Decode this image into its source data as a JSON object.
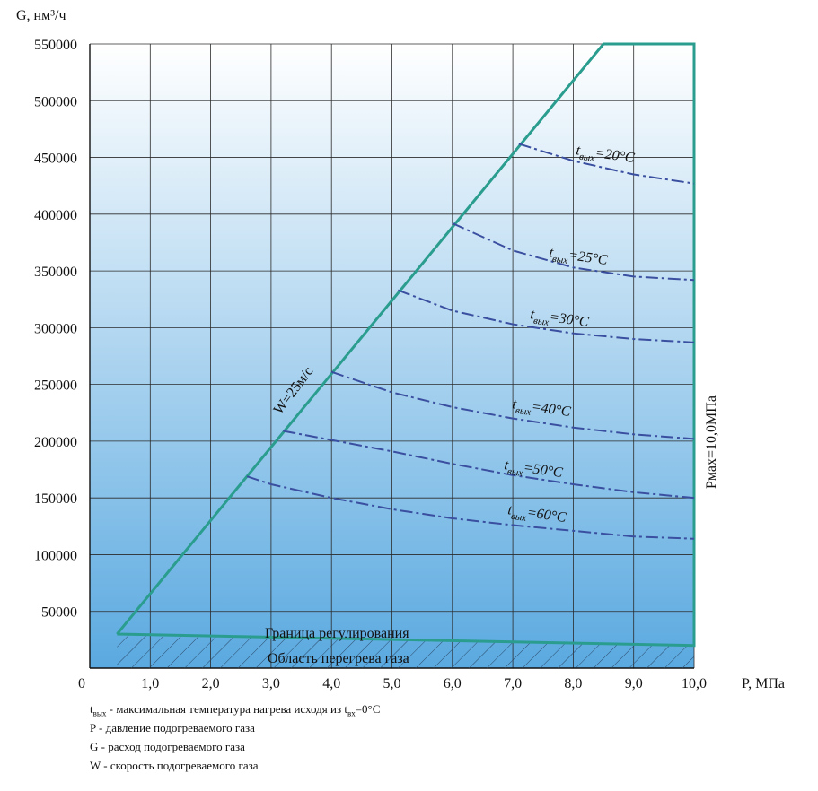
{
  "chart_data": {
    "type": "line",
    "ylabel": "G, нм³/ч",
    "xlabel": "P, МПа",
    "xlim": [
      0,
      10
    ],
    "ylim": [
      0,
      550000
    ],
    "x_ticks": [
      {
        "v": 1,
        "label": "1,0"
      },
      {
        "v": 2,
        "label": "2,0"
      },
      {
        "v": 3,
        "label": "3,0"
      },
      {
        "v": 4,
        "label": "4,0"
      },
      {
        "v": 5,
        "label": "5,0"
      },
      {
        "v": 6,
        "label": "6,0"
      },
      {
        "v": 7,
        "label": "7,0"
      },
      {
        "v": 8,
        "label": "8,0"
      },
      {
        "v": 9,
        "label": "9,0"
      },
      {
        "v": 10,
        "label": "10,0"
      }
    ],
    "y_ticks": [
      {
        "v": 50000,
        "label": "50000"
      },
      {
        "v": 100000,
        "label": "100000"
      },
      {
        "v": 150000,
        "label": "150000"
      },
      {
        "v": 200000,
        "label": "200000"
      },
      {
        "v": 250000,
        "label": "250000"
      },
      {
        "v": 300000,
        "label": "300000"
      },
      {
        "v": 350000,
        "label": "350000"
      },
      {
        "v": 400000,
        "label": "400000"
      },
      {
        "v": 450000,
        "label": "450000"
      },
      {
        "v": 500000,
        "label": "500000"
      },
      {
        "v": 550000,
        "label": "550000"
      }
    ],
    "origin_label": "0",
    "grid": true,
    "boundary": {
      "points": [
        [
          0.45,
          30000
        ],
        [
          8.5,
          550000
        ],
        [
          10.0,
          550000
        ],
        [
          10.0,
          20000
        ],
        [
          0.45,
          30000
        ]
      ],
      "color": "#2a9d8f"
    },
    "labels": {
      "velocity": "W=25м/с",
      "pmax": "Pмах=10,0МПа",
      "regulation": "Граница регулирования",
      "overheat": "Область перегрева газа"
    },
    "series_color": "#3a4fa0",
    "series": [
      {
        "name": "t_вых=20°C",
        "label_main": "t",
        "label_sub": "вых",
        "label_rest": "=20°C",
        "x": [
          7.1,
          8.0,
          9.0,
          10.0
        ],
        "y": [
          462000,
          447000,
          435000,
          427000
        ]
      },
      {
        "name": "t_вых=25°C",
        "label_main": "t",
        "label_sub": "вых",
        "label_rest": "=25°C",
        "x": [
          6.0,
          7.0,
          8.0,
          9.0,
          10.0
        ],
        "y": [
          392000,
          368000,
          353000,
          345000,
          342000
        ]
      },
      {
        "name": "t_вых=30°C",
        "label_main": "t",
        "label_sub": "вых",
        "label_rest": "=30°C",
        "x": [
          5.1,
          6.0,
          7.0,
          8.0,
          9.0,
          10.0
        ],
        "y": [
          333000,
          315000,
          303000,
          295000,
          290000,
          287000
        ]
      },
      {
        "name": "t_вых=40°C",
        "label_main": "t",
        "label_sub": "вых",
        "label_rest": "=40°C",
        "x": [
          4.0,
          5.0,
          6.0,
          7.0,
          8.0,
          9.0,
          10.0
        ],
        "y": [
          261000,
          243000,
          230000,
          220000,
          212000,
          206000,
          202000
        ]
      },
      {
        "name": "t_вых=50°C",
        "label_main": "t",
        "label_sub": "вых",
        "label_rest": "=50°C",
        "x": [
          3.2,
          4.0,
          5.0,
          6.0,
          7.0,
          8.0,
          9.0,
          10.0
        ],
        "y": [
          209000,
          201000,
          191000,
          180000,
          170000,
          162000,
          155000,
          150000
        ]
      },
      {
        "name": "t_вых=60°C",
        "label_main": "t",
        "label_sub": "вых",
        "label_rest": "=60°C",
        "x": [
          2.6,
          3.0,
          4.0,
          5.0,
          6.0,
          7.0,
          8.0,
          9.0,
          10.0
        ],
        "y": [
          169000,
          162000,
          150000,
          140000,
          132000,
          126000,
          121000,
          116000,
          114000
        ]
      }
    ]
  },
  "legend": [
    {
      "main": "t",
      "sub": "вых",
      "text": " - максимальная температура нагрева исходя из t",
      "sub2": "вх",
      "tail": "=0°C"
    },
    {
      "main": "",
      "sub": "",
      "text": "P - давление подогреваемого газа",
      "sub2": "",
      "tail": ""
    },
    {
      "main": "",
      "sub": "",
      "text": "G - расход подогреваемого газа",
      "sub2": "",
      "tail": ""
    },
    {
      "main": "",
      "sub": "",
      "text": "W - скорость подогреваемого газа",
      "sub2": "",
      "tail": ""
    }
  ]
}
